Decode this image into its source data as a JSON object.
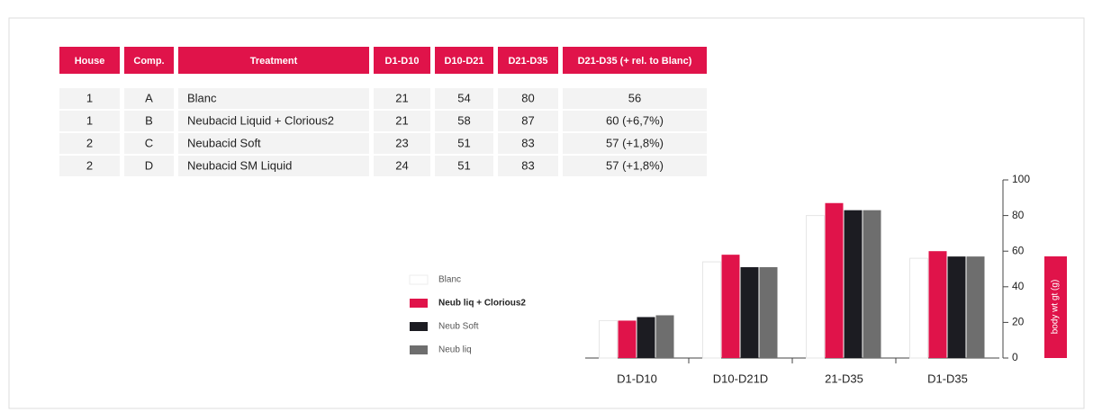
{
  "table": {
    "header": [
      "House",
      "Comp.",
      "Treatment",
      "D1-D10",
      "D10-D21",
      "D21-D35",
      "D21-D35 (+ rel. to Blanc)"
    ],
    "rows": [
      [
        "1",
        "A",
        "Blanc",
        "21",
        "54",
        "80",
        "56"
      ],
      [
        "1",
        "B",
        "Neubacid Liquid + Clorious2",
        "21",
        "58",
        "87",
        "60 (+6,7%)"
      ],
      [
        "2",
        "C",
        "Neubacid Soft",
        "23",
        "51",
        "83",
        "57 (+1,8%)"
      ],
      [
        "2",
        "D",
        "Neubacid SM Liquid",
        "24",
        "51",
        "83",
        "57 (+1,8%)"
      ]
    ]
  },
  "chart_data": {
    "type": "bar",
    "categories": [
      "D1-D10",
      "D10-D21D",
      "21-D35",
      "D1-D35"
    ],
    "series": [
      {
        "name": "Blanc",
        "color": "#ffffff",
        "values": [
          21,
          54,
          80,
          56
        ]
      },
      {
        "name": "Neub liq + Clorious2",
        "color": "#e0134a",
        "values": [
          21,
          58,
          87,
          60
        ]
      },
      {
        "name": "Neub Soft",
        "color": "#1c1c22",
        "values": [
          23,
          51,
          83,
          57
        ]
      },
      {
        "name": "Neub liq",
        "color": "#6e6e6e",
        "values": [
          24,
          51,
          83,
          57
        ]
      }
    ],
    "y_label": "body wt gt (g)",
    "ylim": [
      0,
      100
    ],
    "yticks": [
      0,
      20,
      40,
      60,
      80,
      100
    ],
    "grid": false
  }
}
